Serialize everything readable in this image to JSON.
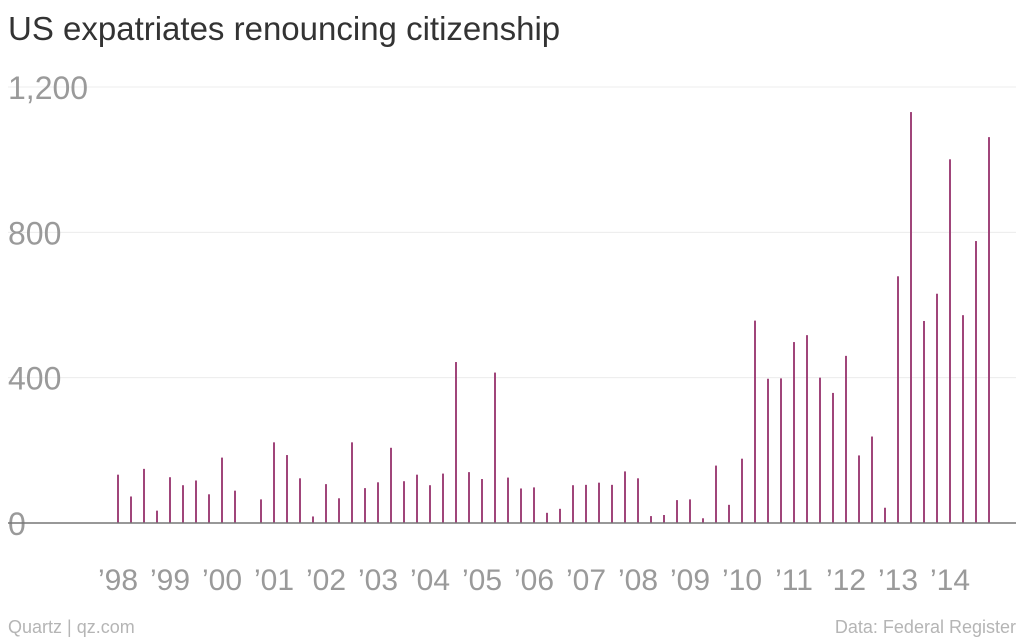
{
  "chart_data": {
    "type": "bar",
    "title": "US expatriates renouncing citizenship",
    "xlabel": "",
    "ylabel": "",
    "ylim": [
      0,
      1200
    ],
    "yticks": [
      "0",
      "400",
      "800",
      "1,200"
    ],
    "ytick_values": [
      0,
      400,
      800,
      1200
    ],
    "xticks": [
      "’98",
      "’99",
      "’00",
      "’01",
      "’02",
      "’03",
      "’04",
      "’05",
      "’06",
      "’07",
      "’08",
      "’09",
      "’10",
      "’11",
      "’12",
      "’13",
      "’14"
    ],
    "xtick_years": [
      1998,
      1999,
      2000,
      2001,
      2002,
      2003,
      2004,
      2005,
      2006,
      2007,
      2008,
      2009,
      2010,
      2011,
      2012,
      2013,
      2014
    ],
    "grid": true,
    "bar_color": "#a0457a",
    "series": [
      {
        "x": [
          "1998-Q1",
          "1998-Q2",
          "1998-Q3",
          "1998-Q4",
          "1999-Q1",
          "1999-Q2",
          "1999-Q3",
          "1999-Q4",
          "2000-Q1",
          "2000-Q2",
          "2000-Q3",
          "2000-Q4",
          "2001-Q1",
          "2001-Q2",
          "2001-Q3",
          "2001-Q4",
          "2002-Q1",
          "2002-Q2",
          "2002-Q3",
          "2002-Q4",
          "2003-Q1",
          "2003-Q2",
          "2003-Q3",
          "2003-Q4",
          "2004-Q1",
          "2004-Q2",
          "2004-Q3",
          "2004-Q4",
          "2005-Q1",
          "2005-Q2",
          "2005-Q3",
          "2005-Q4",
          "2006-Q1",
          "2006-Q2",
          "2006-Q3",
          "2006-Q4",
          "2007-Q1",
          "2007-Q2",
          "2007-Q3",
          "2007-Q4",
          "2008-Q1",
          "2008-Q2",
          "2008-Q3",
          "2008-Q4",
          "2009-Q1",
          "2009-Q2",
          "2009-Q3",
          "2009-Q4",
          "2010-Q1",
          "2010-Q2",
          "2010-Q3",
          "2010-Q4",
          "2011-Q1",
          "2011-Q2",
          "2011-Q3",
          "2011-Q4",
          "2012-Q1",
          "2012-Q2",
          "2012-Q3",
          "2012-Q4",
          "2013-Q1",
          "2013-Q2",
          "2013-Q3",
          "2013-Q4",
          "2014-Q1",
          "2014-Q2",
          "2014-Q3",
          "2014-Q4"
        ],
        "values": [
          133,
          73,
          149,
          34,
          126,
          104,
          117,
          79,
          180,
          89,
          0,
          65,
          222,
          187,
          123,
          18,
          107,
          68,
          222,
          96,
          112,
          207,
          115,
          133,
          104,
          136,
          443,
          140,
          121,
          414,
          125,
          95,
          98,
          28,
          39,
          104,
          105,
          111,
          105,
          142,
          123,
          19,
          22,
          63,
          65,
          13,
          158,
          50,
          177,
          557,
          397,
          398,
          498,
          517,
          400,
          358,
          460,
          186,
          238,
          42,
          679,
          1131,
          556,
          631,
          1001,
          572,
          776,
          1062
        ]
      }
    ]
  },
  "footer": {
    "source_left": "Quartz | qz.com",
    "source_right": "Data: Federal Register"
  }
}
